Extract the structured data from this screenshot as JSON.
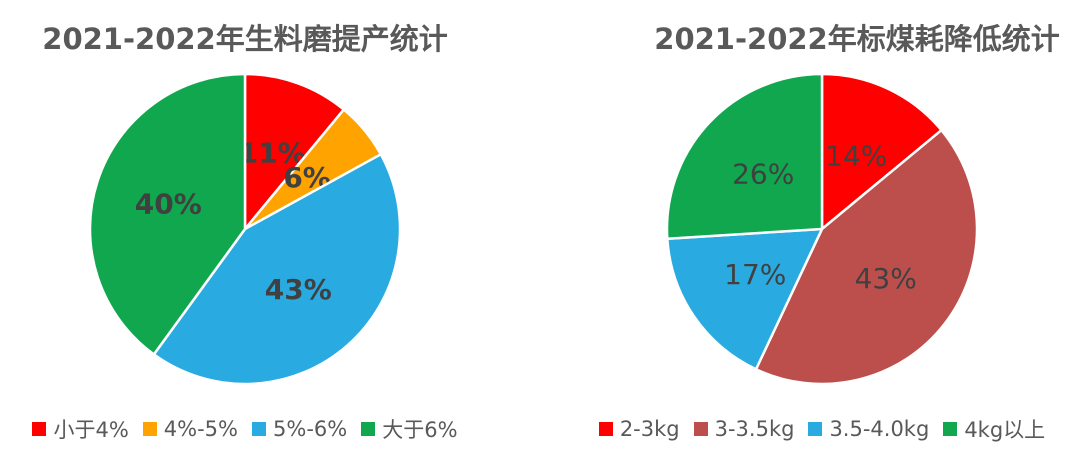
{
  "styles": {
    "background": "#FFFFFF",
    "title_color": "#595959",
    "label_color": "#404040",
    "legend_text_color": "#595959",
    "slice_separator_color": "#FFFFFF"
  },
  "chart_data": [
    {
      "type": "pie",
      "title": "2021-2022年生料磨提产统计",
      "categories": [
        "小于4%",
        "4%-5%",
        "5%-6%",
        "大于6%"
      ],
      "values": [
        11,
        6,
        43,
        40
      ],
      "labels": [
        "11%",
        "6%",
        "43%",
        "40%"
      ],
      "colors": [
        "#FF0000",
        "#FFA300",
        "#29ABE2",
        "#10A74F"
      ],
      "start_angle_deg": 0,
      "direction": "clockwise",
      "value_label_style": "bold",
      "units": "percent",
      "legend_position": "bottom"
    },
    {
      "type": "pie",
      "title": "2021-2022年标煤耗降低统计",
      "categories": [
        "2-3kg",
        "3-3.5kg",
        "3.5-4.0kg",
        "4kg以上"
      ],
      "values": [
        14,
        43,
        17,
        26
      ],
      "labels": [
        "14%",
        "43%",
        "17%",
        "26%"
      ],
      "colors": [
        "#FF0000",
        "#BC4F4C",
        "#29ABE2",
        "#10A74F"
      ],
      "start_angle_deg": 0,
      "direction": "clockwise",
      "value_label_style": "normal",
      "units": "percent",
      "legend_position": "bottom"
    }
  ]
}
